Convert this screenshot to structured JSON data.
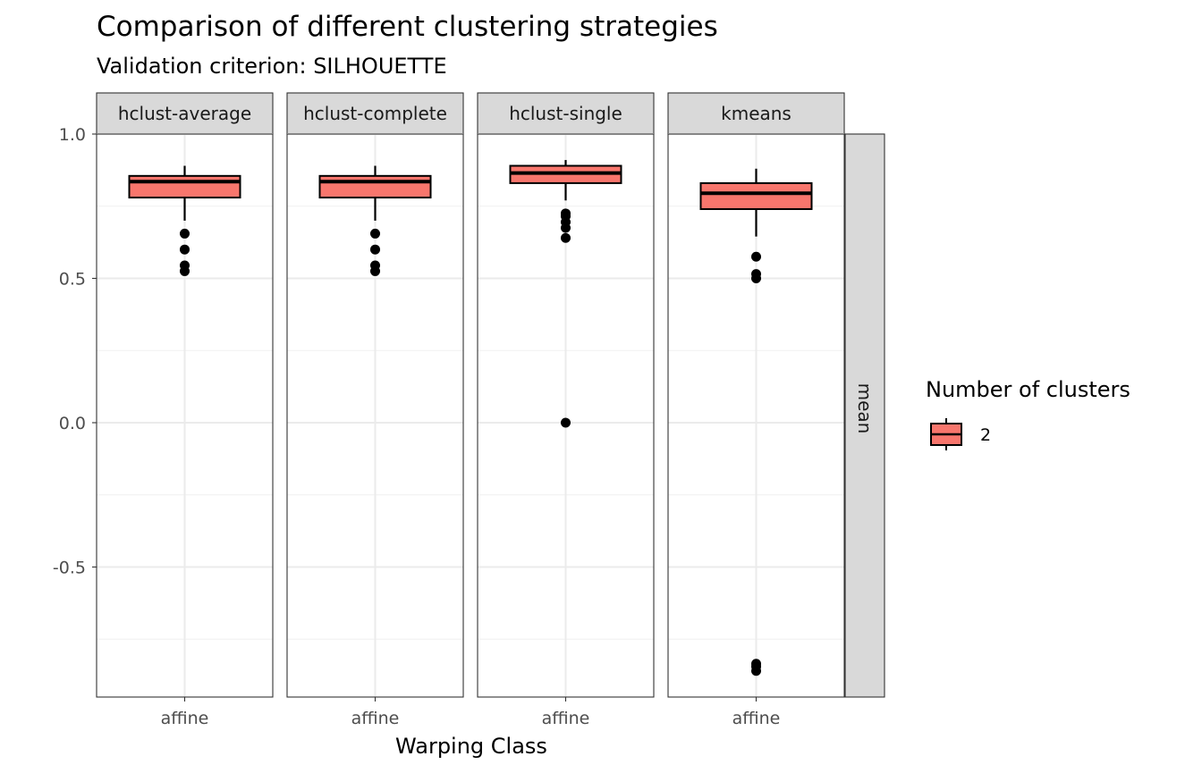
{
  "chart_data": {
    "type": "boxplot",
    "title": "Comparison of different clustering strategies",
    "subtitle": "Validation criterion: SILHOUETTE",
    "xlabel": "Warping Class",
    "ylabel": "",
    "ylim": [
      -0.92,
      1.0
    ],
    "y_ticks": [
      1.0,
      0.5,
      0.0,
      -0.5
    ],
    "y_tick_labels": [
      "1.0",
      "0.5",
      "0.0",
      "-0.5"
    ],
    "x_category": "affine",
    "grid": true,
    "row_strip": "mean",
    "legend": {
      "title": "Number of clusters",
      "placement": "right",
      "entries": [
        {
          "label": "2",
          "color": "#F8766D"
        }
      ]
    },
    "fill_color": "#F8766D",
    "panels": [
      {
        "facet": "hclust-average",
        "category": "affine",
        "whisker_low": 0.7,
        "q1": 0.78,
        "median": 0.835,
        "q3": 0.855,
        "whisker_high": 0.89,
        "outliers": [
          0.655,
          0.6,
          0.545,
          0.525
        ]
      },
      {
        "facet": "hclust-complete",
        "category": "affine",
        "whisker_low": 0.7,
        "q1": 0.78,
        "median": 0.835,
        "q3": 0.855,
        "whisker_high": 0.89,
        "outliers": [
          0.655,
          0.6,
          0.545,
          0.525
        ]
      },
      {
        "facet": "hclust-single",
        "category": "affine",
        "whisker_low": 0.77,
        "q1": 0.83,
        "median": 0.865,
        "q3": 0.89,
        "whisker_high": 0.91,
        "outliers": [
          0.725,
          0.715,
          0.695,
          0.675,
          0.64,
          0.0
        ]
      },
      {
        "facet": "kmeans",
        "category": "affine",
        "whisker_low": 0.645,
        "q1": 0.74,
        "median": 0.795,
        "q3": 0.83,
        "whisker_high": 0.88,
        "outliers": [
          0.575,
          0.515,
          0.5,
          -0.835,
          -0.845,
          -0.86
        ]
      }
    ]
  }
}
